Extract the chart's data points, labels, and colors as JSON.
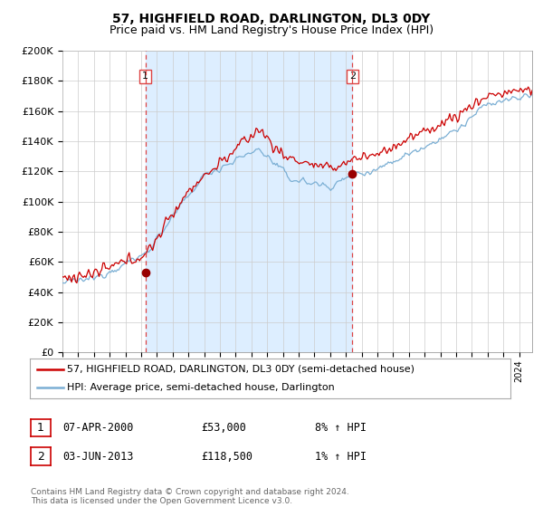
{
  "title": "57, HIGHFIELD ROAD, DARLINGTON, DL3 0DY",
  "subtitle": "Price paid vs. HM Land Registry's House Price Index (HPI)",
  "ylim": [
    0,
    200000
  ],
  "yticks": [
    0,
    20000,
    40000,
    60000,
    80000,
    100000,
    120000,
    140000,
    160000,
    180000,
    200000
  ],
  "xlim_start": 1995.0,
  "xlim_end": 2024.83,
  "purchase1_date": 2000.27,
  "purchase1_price": 53000,
  "purchase1_label": "1",
  "purchase2_date": 2013.42,
  "purchase2_price": 118500,
  "purchase2_label": "2",
  "line1_color": "#cc0000",
  "line2_color": "#7bafd4",
  "shade_color": "#ddeeff",
  "vline_color": "#dd4444",
  "marker_color": "#990000",
  "grid_color": "#cccccc",
  "bg_color": "#ffffff",
  "legend_line1": "57, HIGHFIELD ROAD, DARLINGTON, DL3 0DY (semi-detached house)",
  "legend_line2": "HPI: Average price, semi-detached house, Darlington",
  "table_row1": [
    "1",
    "07-APR-2000",
    "£53,000",
    "8% ↑ HPI"
  ],
  "table_row2": [
    "2",
    "03-JUN-2013",
    "£118,500",
    "1% ↑ HPI"
  ],
  "footer": "Contains HM Land Registry data © Crown copyright and database right 2024.\nThis data is licensed under the Open Government Licence v3.0.",
  "title_fontsize": 10,
  "subtitle_fontsize": 9,
  "tick_fontsize": 7,
  "seed": 12345
}
